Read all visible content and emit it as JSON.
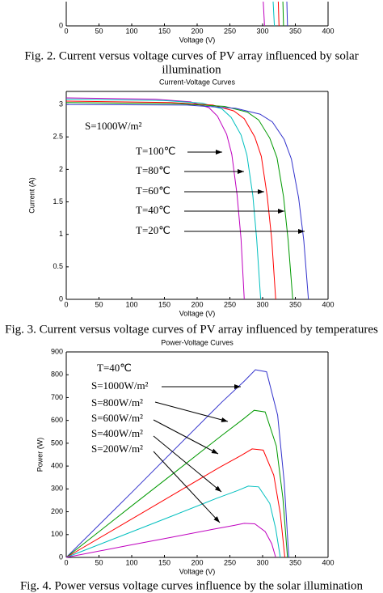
{
  "chart_data": [
    {
      "type": "line",
      "xlabel": "Voltage (V)",
      "xlim": [
        0,
        400
      ],
      "xticks": [
        0,
        50,
        100,
        150,
        200,
        250,
        300,
        350,
        400
      ],
      "ylim": [
        0,
        0.3
      ],
      "yticks": [
        0
      ],
      "series": [
        {
          "color": "#bf00bf",
          "x": [
            301,
            303
          ],
          "values": [
            0.3,
            0
          ]
        },
        {
          "color": "#00bfbf",
          "x": [
            316,
            318
          ],
          "values": [
            0.3,
            0
          ]
        },
        {
          "color": "#ff0000",
          "x": [
            324,
            325
          ],
          "values": [
            0.3,
            0
          ]
        },
        {
          "color": "#009900",
          "x": [
            331,
            332
          ],
          "values": [
            0.3,
            0
          ]
        },
        {
          "color": "#3333cc",
          "x": [
            337,
            338
          ],
          "values": [
            0.3,
            0
          ]
        }
      ],
      "caption": [
        "Fig. 2.  Current versus voltage curves of PV array influenced by solar",
        "illumination"
      ]
    },
    {
      "type": "line",
      "title": "Current-Voltage Curves",
      "xlabel": "Voltage (V)",
      "ylabel": "Current (A)",
      "xlim": [
        0,
        400
      ],
      "xticks": [
        0,
        50,
        100,
        150,
        200,
        250,
        300,
        350,
        400
      ],
      "ylim": [
        0,
        3.2
      ],
      "yticks": [
        0,
        0.5,
        1,
        1.5,
        2,
        2.5,
        3
      ],
      "series": [
        {
          "color": "#bf00bf",
          "x": [
            0,
            136,
            190,
            218,
            231,
            245,
            253,
            261,
            267,
            272
          ],
          "values": [
            3.1,
            3.08,
            3.04,
            2.95,
            2.82,
            2.54,
            2.23,
            1.61,
            0.93,
            0
          ]
        },
        {
          "color": "#00bfbf",
          "x": [
            0,
            149,
            208,
            238,
            252,
            267,
            276,
            285,
            291,
            297
          ],
          "values": [
            3.08,
            3.06,
            3.02,
            2.93,
            2.8,
            2.53,
            2.22,
            1.6,
            0.92,
            0
          ]
        },
        {
          "color": "#ff0000",
          "x": [
            0,
            160,
            224,
            256,
            272,
            288,
            298,
            307,
            314,
            320
          ],
          "values": [
            3.05,
            3.03,
            2.99,
            2.9,
            2.78,
            2.5,
            2.2,
            1.59,
            0.92,
            0
          ]
        },
        {
          "color": "#009900",
          "x": [
            0,
            173,
            242,
            277,
            294,
            311,
            322,
            332,
            339,
            346
          ],
          "values": [
            3.03,
            3.01,
            2.97,
            2.88,
            2.76,
            2.48,
            2.18,
            1.58,
            0.91,
            0
          ]
        },
        {
          "color": "#3333cc",
          "x": [
            0,
            185,
            259,
            296,
            315,
            333,
            344,
            355,
            363,
            370
          ],
          "values": [
            3.0,
            2.99,
            2.94,
            2.85,
            2.73,
            2.46,
            2.16,
            1.56,
            0.9,
            0
          ]
        }
      ],
      "annotations": [
        "S=1000W/m²",
        "T=100℃",
        "T=80℃",
        "T=60℃",
        "T=40℃",
        "T=20℃"
      ],
      "caption": [
        "Fig. 3.  Current versus voltage curves of PV array influenced by temperatures"
      ]
    },
    {
      "type": "line",
      "title": "Power-Voltage Curves",
      "xlabel": "Voltage (V)",
      "ylabel": "Power (W)",
      "xlim": [
        0,
        400
      ],
      "xticks": [
        0,
        50,
        100,
        150,
        200,
        250,
        300,
        350,
        400
      ],
      "ylim": [
        0,
        900
      ],
      "yticks": [
        0,
        100,
        200,
        300,
        400,
        500,
        600,
        700,
        800,
        900
      ],
      "series": [
        {
          "color": "#3333cc",
          "x": [
            0,
            102,
            170,
            238,
            272,
            289,
            306,
            323,
            333,
            340
          ],
          "values": [
            0,
            290,
            486,
            681,
            772,
            822,
            813,
            623,
            332,
            0
          ]
        },
        {
          "color": "#009900",
          "x": [
            0,
            101,
            169,
            237,
            270,
            287,
            304,
            321,
            331,
            338
          ],
          "values": [
            0,
            228,
            380,
            533,
            605,
            644,
            637,
            488,
            260,
            0
          ]
        },
        {
          "color": "#ff0000",
          "x": [
            0,
            100,
            167,
            234,
            267,
            284,
            301,
            317,
            327,
            334
          ],
          "values": [
            0,
            168,
            281,
            394,
            446,
            475,
            470,
            360,
            192,
            0
          ]
        },
        {
          "color": "#00bfbf",
          "x": [
            0,
            98,
            164,
            229,
            262,
            278,
            294,
            311,
            320,
            327
          ],
          "values": [
            0,
            110,
            184,
            258,
            293,
            312,
            309,
            236,
            126,
            0
          ]
        },
        {
          "color": "#bf00bf",
          "x": [
            0,
            96,
            160,
            224,
            256,
            272,
            288,
            304,
            314,
            320
          ],
          "values": [
            0,
            53,
            88,
            123,
            140,
            149,
            147,
            113,
            60,
            0
          ]
        }
      ],
      "annotations": [
        "T=40℃",
        "S=1000W/m²",
        "S=800W/m²",
        "S=600W/m²",
        "S=400W/m²",
        "S=200W/m²"
      ],
      "caption": [
        "Fig. 4.  Power versus voltage curves influence by the solar illumination"
      ]
    }
  ]
}
